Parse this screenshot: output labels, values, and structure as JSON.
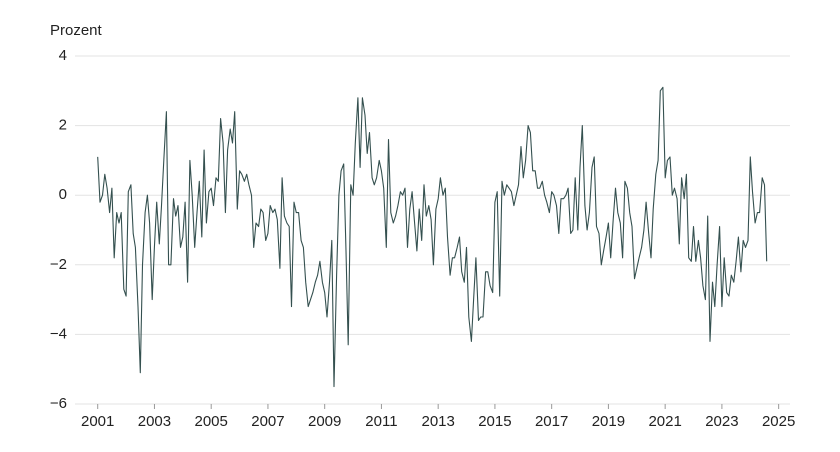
{
  "chart_data": {
    "type": "line",
    "y_label": "Prozent",
    "xlim": [
      2000.2,
      2025.4
    ],
    "xticks": [
      2001,
      2003,
      2005,
      2007,
      2009,
      2011,
      2013,
      2015,
      2017,
      2019,
      2021,
      2023,
      2025
    ],
    "ylim": [
      -6,
      4
    ],
    "yticks": [
      {
        "value": -6,
        "label": "−6"
      },
      {
        "value": -4,
        "label": "−4"
      },
      {
        "value": -2,
        "label": "−2"
      },
      0,
      2,
      4
    ],
    "grid": true,
    "series": [
      {
        "name": "Prozent",
        "color": "#34504f",
        "x": [
          2001,
          2001.08,
          2001.17,
          2001.25,
          2001.33,
          2001.42,
          2001.5,
          2001.58,
          2001.67,
          2001.75,
          2001.83,
          2001.92,
          2002,
          2002.08,
          2002.17,
          2002.25,
          2002.33,
          2002.42,
          2002.5,
          2002.58,
          2002.67,
          2002.75,
          2002.83,
          2002.92,
          2003,
          2003.08,
          2003.17,
          2003.25,
          2003.33,
          2003.42,
          2003.5,
          2003.58,
          2003.67,
          2003.75,
          2003.83,
          2003.92,
          2004,
          2004.08,
          2004.17,
          2004.25,
          2004.33,
          2004.42,
          2004.5,
          2004.58,
          2004.67,
          2004.75,
          2004.83,
          2004.92,
          2005,
          2005.08,
          2005.17,
          2005.25,
          2005.33,
          2005.42,
          2005.5,
          2005.58,
          2005.67,
          2005.75,
          2005.83,
          2005.92,
          2006,
          2006.08,
          2006.17,
          2006.25,
          2006.33,
          2006.42,
          2006.5,
          2006.58,
          2006.67,
          2006.75,
          2006.83,
          2006.92,
          2007,
          2007.08,
          2007.17,
          2007.25,
          2007.33,
          2007.42,
          2007.5,
          2007.58,
          2007.67,
          2007.75,
          2007.83,
          2007.92,
          2008,
          2008.08,
          2008.17,
          2008.25,
          2008.33,
          2008.42,
          2008.5,
          2008.58,
          2008.67,
          2008.75,
          2008.83,
          2008.92,
          2009,
          2009.08,
          2009.17,
          2009.25,
          2009.33,
          2009.42,
          2009.5,
          2009.58,
          2009.67,
          2009.75,
          2009.83,
          2009.92,
          2010,
          2010.08,
          2010.17,
          2010.25,
          2010.33,
          2010.42,
          2010.5,
          2010.58,
          2010.67,
          2010.75,
          2010.83,
          2010.92,
          2011,
          2011.08,
          2011.17,
          2011.25,
          2011.33,
          2011.42,
          2011.5,
          2011.58,
          2011.67,
          2011.75,
          2011.83,
          2011.92,
          2012,
          2012.08,
          2012.17,
          2012.25,
          2012.33,
          2012.42,
          2012.5,
          2012.58,
          2012.67,
          2012.75,
          2012.83,
          2012.92,
          2013,
          2013.08,
          2013.17,
          2013.25,
          2013.33,
          2013.42,
          2013.5,
          2013.58,
          2013.67,
          2013.75,
          2013.83,
          2013.92,
          2014,
          2014.08,
          2014.17,
          2014.25,
          2014.33,
          2014.42,
          2014.5,
          2014.58,
          2014.67,
          2014.75,
          2014.83,
          2014.92,
          2015,
          2015.08,
          2015.17,
          2015.25,
          2015.33,
          2015.42,
          2015.5,
          2015.58,
          2015.67,
          2015.75,
          2015.83,
          2015.92,
          2016,
          2016.08,
          2016.17,
          2016.25,
          2016.33,
          2016.42,
          2016.5,
          2016.58,
          2016.67,
          2016.75,
          2016.83,
          2016.92,
          2017,
          2017.08,
          2017.17,
          2017.25,
          2017.33,
          2017.42,
          2017.5,
          2017.58,
          2017.67,
          2017.75,
          2017.83,
          2017.92,
          2018,
          2018.08,
          2018.17,
          2018.25,
          2018.33,
          2018.42,
          2018.5,
          2018.58,
          2018.67,
          2018.75,
          2018.83,
          2018.92,
          2019,
          2019.08,
          2019.17,
          2019.25,
          2019.33,
          2019.42,
          2019.5,
          2019.58,
          2019.67,
          2019.75,
          2019.83,
          2019.92,
          2020,
          2020.08,
          2020.17,
          2020.25,
          2020.33,
          2020.42,
          2020.5,
          2020.58,
          2020.67,
          2020.75,
          2020.83,
          2020.92,
          2021,
          2021.08,
          2021.17,
          2021.25,
          2021.33,
          2021.42,
          2021.5,
          2021.58,
          2021.67,
          2021.75,
          2021.83,
          2021.92,
          2022,
          2022.08,
          2022.17,
          2022.25,
          2022.33,
          2022.42,
          2022.5,
          2022.58,
          2022.67,
          2022.75,
          2022.83,
          2022.92,
          2023,
          2023.08,
          2023.17,
          2023.25,
          2023.33,
          2023.42,
          2023.5,
          2023.58,
          2023.67,
          2023.75,
          2023.83,
          2023.92,
          2024,
          2024.08,
          2024.17,
          2024.25,
          2024.33,
          2024.42,
          2024.5,
          2024.58
        ],
        "values": [
          1.1,
          -0.2,
          0,
          0.6,
          0.2,
          -0.5,
          0.2,
          -1.8,
          -0.5,
          -0.8,
          -0.5,
          -2.7,
          -2.9,
          0.1,
          0.3,
          -1.1,
          -1.5,
          -3.2,
          -5.1,
          -2,
          -0.5,
          0,
          -0.8,
          -3,
          -1.5,
          -0.2,
          -1.4,
          -0.3,
          1,
          2.4,
          -2,
          -2,
          -0.1,
          -0.6,
          -0.3,
          -1.5,
          -1.2,
          -0.2,
          -2.5,
          1,
          0,
          -1.5,
          -0.5,
          0.4,
          -1.2,
          1.3,
          -0.8,
          0.1,
          0.2,
          -0.3,
          0.5,
          0.4,
          2.2,
          1.5,
          -0.5,
          1.3,
          1.9,
          1.5,
          2.4,
          -0.4,
          0.7,
          0.6,
          0.4,
          0.6,
          0.3,
          0,
          -1.5,
          -0.8,
          -0.9,
          -0.4,
          -0.5,
          -1.3,
          -1.1,
          -0.3,
          -0.5,
          -0.4,
          -0.7,
          -2.1,
          0.5,
          -0.6,
          -0.8,
          -0.9,
          -3.2,
          -0.2,
          -0.5,
          -0.5,
          -1.3,
          -1.5,
          -2.5,
          -3.2,
          -3,
          -2.8,
          -2.5,
          -2.3,
          -1.9,
          -2.5,
          -2.8,
          -3.5,
          -2.5,
          -1.3,
          -5.5,
          -2.3,
          0,
          0.7,
          0.9,
          -1.6,
          -4.3,
          0.3,
          0,
          1.5,
          2.8,
          0.8,
          2.8,
          2.3,
          1.2,
          1.8,
          0.5,
          0.3,
          0.5,
          1,
          0.7,
          0.2,
          -1.5,
          1.6,
          -0.5,
          -0.8,
          -0.6,
          -0.3,
          0.1,
          0,
          0.2,
          -1.5,
          -0.4,
          0.1,
          -0.8,
          -1.6,
          -0.4,
          -1.3,
          0.3,
          -0.6,
          -0.3,
          -0.7,
          -2,
          -0.4,
          -0.1,
          0.5,
          0,
          0.2,
          -1.2,
          -2.3,
          -1.8,
          -1.8,
          -1.5,
          -1.2,
          -2.2,
          -2.5,
          -1.5,
          -3.5,
          -4.2,
          -3,
          -1.8,
          -3.6,
          -3.5,
          -3.5,
          -2.2,
          -2.2,
          -2.6,
          -2.8,
          -0.2,
          0.1,
          -2.9,
          0.4,
          0,
          0.3,
          0.2,
          0.1,
          -0.3,
          0,
          0.3,
          1.4,
          0.5,
          1,
          2,
          1.8,
          0.7,
          0.7,
          0.2,
          0.2,
          0.4,
          0,
          -0.2,
          -0.5,
          0.1,
          0,
          -0.3,
          -1.1,
          -0.1,
          -0.1,
          0,
          0.2,
          -1.1,
          -1,
          0.5,
          -1,
          0.8,
          2,
          -0.3,
          -1,
          -0.5,
          0.8,
          1.1,
          -0.9,
          -1.1,
          -2,
          -1.6,
          -1.2,
          -0.8,
          -1.8,
          -0.7,
          0.2,
          -0.5,
          -0.8,
          -1.8,
          0.4,
          0.2,
          -0.5,
          -0.9,
          -2.4,
          -2.1,
          -1.8,
          -1.5,
          -1,
          -0.2,
          -1.1,
          -1.8,
          -0.4,
          0.6,
          1,
          3,
          3.1,
          0.5,
          1,
          1.1,
          0,
          0.2,
          -0.1,
          -1.4,
          0.5,
          -0.1,
          0.6,
          -1.8,
          -1.9,
          -0.9,
          -1.9,
          -1.3,
          -1.8,
          -2.6,
          -3,
          -0.6,
          -4.2,
          -2.5,
          -3.2,
          -2,
          -0.9,
          -3.2,
          -1.8,
          -2.8,
          -2.9,
          -2.3,
          -2.5,
          -1.9,
          -1.2,
          -2.2,
          -1.3,
          -1.5,
          -1.3,
          1.1,
          0.1,
          -0.8,
          -0.5,
          -0.5,
          0.5,
          0.3,
          -1.9
        ]
      }
    ]
  }
}
